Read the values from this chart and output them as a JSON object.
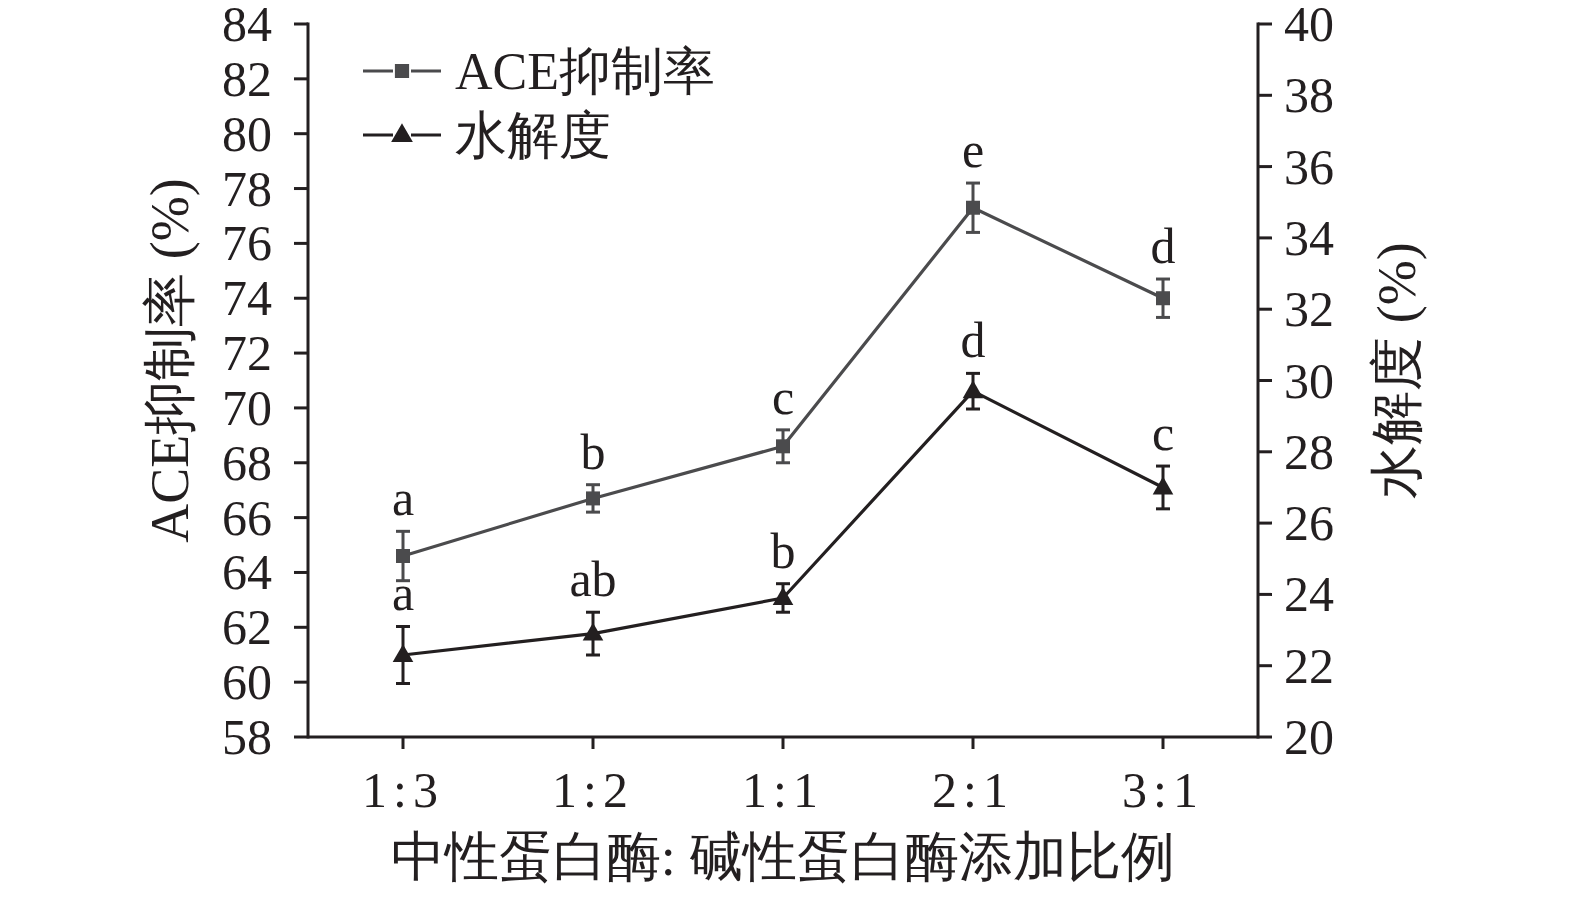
{
  "chart_data": {
    "type": "line",
    "xlabel": "中性蛋白酶: 碱性蛋白酶添加比例",
    "ylabel": "ACE抑制率 (%)",
    "y2label": "水解度 (%)",
    "categories": [
      "1:3",
      "1:2",
      "1:1",
      "2:1",
      "3:1"
    ],
    "series": [
      {
        "name": "ACE抑制率",
        "color": "#4b4b4d",
        "marker": "square",
        "values": [
          64.6,
          66.7,
          68.6,
          77.3,
          74.0
        ],
        "errors": [
          0.9,
          0.5,
          0.6,
          0.9,
          0.7
        ],
        "value_labels": [
          "a",
          "b",
          "c",
          "e",
          "d"
        ]
      },
      {
        "name": "水解度",
        "color": "#231f20",
        "marker": "triangle",
        "axis": "y2",
        "values": [
          22.3,
          22.9,
          23.9,
          29.7,
          27.0
        ],
        "errors": [
          0.8,
          0.6,
          0.4,
          0.5,
          0.6
        ],
        "value_labels": [
          "a",
          "ab",
          "b",
          "d",
          "c"
        ]
      }
    ],
    "ylim": [
      58,
      84
    ],
    "yticks": [
      58,
      60,
      62,
      64,
      66,
      68,
      70,
      72,
      74,
      76,
      78,
      80,
      82,
      84
    ],
    "y2lim": [
      20,
      40
    ],
    "y2ticks": [
      20,
      22,
      24,
      26,
      28,
      30,
      32,
      34,
      36,
      38,
      40
    ],
    "legend": "top left",
    "line_style": "solid"
  }
}
